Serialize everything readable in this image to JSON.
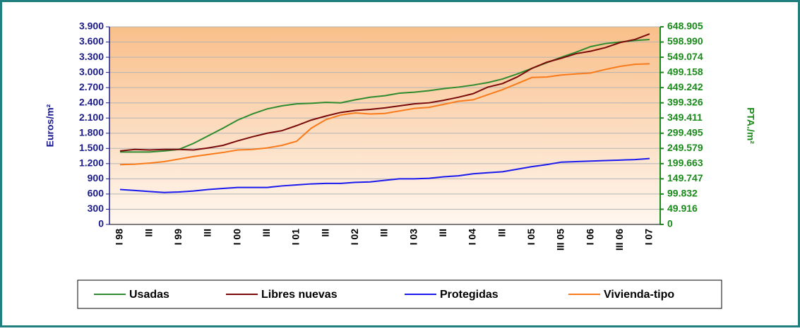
{
  "chart_data": {
    "type": "line",
    "y_label": "Euros/m²",
    "y2_label": "PTA./m²",
    "categories": [
      "I 98",
      null,
      "III",
      null,
      "I 99",
      null,
      "III",
      null,
      "I 00",
      null,
      "III",
      null,
      "I 01",
      null,
      "III",
      null,
      "I 02",
      null,
      "III",
      null,
      "I 03",
      null,
      "III",
      null,
      "I 04",
      null,
      "III",
      null,
      "I 05",
      null,
      "III 05",
      null,
      "I 06",
      null,
      "III 06",
      null,
      "I 07"
    ],
    "series": [
      {
        "name": "Usadas",
        "color": "#2e8b2e",
        "values": [
          1430,
          1430,
          1430,
          1450,
          1480,
          1600,
          1750,
          1900,
          2060,
          2180,
          2280,
          2340,
          2380,
          2390,
          2410,
          2400,
          2460,
          2510,
          2540,
          2590,
          2610,
          2640,
          2680,
          2710,
          2750,
          2800,
          2870,
          2970,
          3080,
          3190,
          3300,
          3400,
          3510,
          3570,
          3600,
          3630,
          3650
        ]
      },
      {
        "name": "Libres nuevas",
        "color": "#7a0a0a",
        "values": [
          1450,
          1480,
          1470,
          1480,
          1480,
          1470,
          1510,
          1560,
          1650,
          1730,
          1800,
          1850,
          1950,
          2060,
          2140,
          2210,
          2250,
          2270,
          2300,
          2340,
          2380,
          2400,
          2450,
          2510,
          2580,
          2710,
          2780,
          2910,
          3080,
          3200,
          3280,
          3370,
          3420,
          3490,
          3590,
          3650,
          3760
        ]
      },
      {
        "name": "Protegidas",
        "color": "#1a1aee",
        "values": [
          690,
          670,
          650,
          630,
          640,
          660,
          690,
          710,
          730,
          730,
          730,
          760,
          780,
          800,
          810,
          810,
          830,
          840,
          870,
          900,
          900,
          910,
          940,
          960,
          1000,
          1020,
          1040,
          1090,
          1140,
          1180,
          1230,
          1240,
          1250,
          1260,
          1270,
          1280,
          1300
        ]
      },
      {
        "name": "Vivienda-tipo",
        "color": "#f97a1a",
        "values": [
          1180,
          1190,
          1210,
          1240,
          1290,
          1340,
          1380,
          1420,
          1470,
          1480,
          1510,
          1560,
          1640,
          1900,
          2070,
          2160,
          2200,
          2180,
          2190,
          2240,
          2290,
          2310,
          2370,
          2430,
          2460,
          2560,
          2660,
          2780,
          2900,
          2910,
          2950,
          2970,
          2990,
          3060,
          3120,
          3160,
          3170
        ]
      }
    ],
    "ylim": [
      0,
      3900
    ],
    "yticks": [
      0,
      300,
      600,
      900,
      {
        "value": 1200,
        "label": "1.200"
      },
      {
        "value": 1500,
        "label": "1.500"
      },
      {
        "value": 1800,
        "label": "1.800"
      },
      {
        "value": 2100,
        "label": "2.100"
      },
      {
        "value": 2400,
        "label": "2.400"
      },
      {
        "value": 2700,
        "label": "2.700"
      },
      {
        "value": 3000,
        "label": "3.000"
      },
      {
        "value": 3300,
        "label": "3.300"
      },
      {
        "value": 3600,
        "label": "3.600"
      },
      {
        "value": 3900,
        "label": "3.900"
      }
    ],
    "y2lim": [
      0,
      648905
    ],
    "y2ticks": [
      0,
      {
        "value": 49916,
        "label": "49.916"
      },
      {
        "value": 99832,
        "label": "99.832"
      },
      {
        "value": 149747,
        "label": "149.747"
      },
      {
        "value": 199663,
        "label": "199.663"
      },
      {
        "value": 249579,
        "label": "249.579"
      },
      {
        "value": 299495,
        "label": "299.495"
      },
      {
        "value": 349411,
        "label": "349.411"
      },
      {
        "value": 399326,
        "label": "399.326"
      },
      {
        "value": 449242,
        "label": "449.242"
      },
      {
        "value": 499158,
        "label": "499.158"
      },
      {
        "value": 549074,
        "label": "549.074"
      },
      {
        "value": 598990,
        "label": "598.990"
      },
      {
        "value": 648905,
        "label": "648.905"
      }
    ],
    "grid": true,
    "legend": "bottom"
  }
}
